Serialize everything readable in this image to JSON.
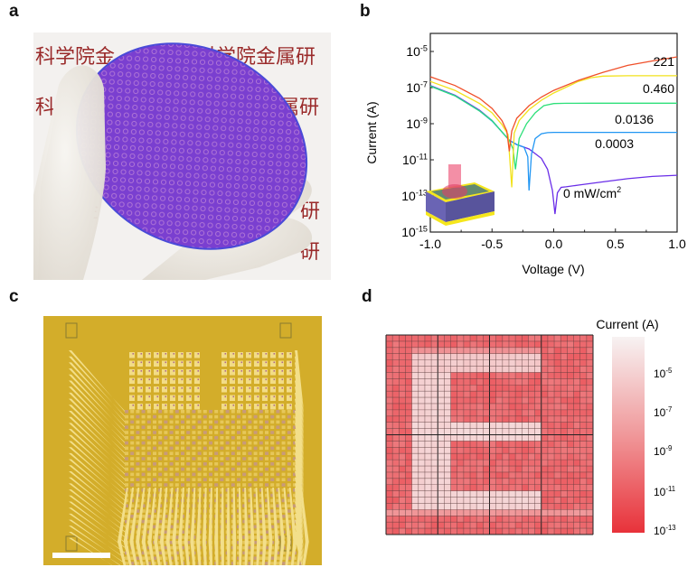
{
  "panels": {
    "a": {
      "label": "a",
      "description": "Photograph of a wafer held in a gloved hand"
    },
    "b": {
      "label": "b"
    },
    "c": {
      "label": "c",
      "description": "Optical micrograph of a sensor array chip with scale bar"
    },
    "d": {
      "label": "d"
    }
  },
  "colors": {
    "wafer": "#7a3fd0",
    "chip_gold": "#d3ad2a",
    "glove": "#ede9e2",
    "curve_221": "#f0502a",
    "curve_0460": "#f2e21c",
    "curve_00136": "#2ee07a",
    "curve_00003": "#2196f3",
    "curve_0": "#6a2ee8",
    "heat_low": "#e8323a",
    "heat_high": "#f7eeee"
  },
  "chart_data": [
    {
      "type": "line",
      "panel": "b",
      "title": "",
      "xlabel": "Voltage (V)",
      "ylabel": "Current (A)",
      "xlim": [
        -1.0,
        1.0
      ],
      "ylim": [
        1e-15,
        0.0001
      ],
      "yscale": "log",
      "xticks": [
        "-1.0",
        "-0.5",
        "0.0",
        "0.5",
        "1.0"
      ],
      "yticks": [
        {
          "base": "10",
          "exp": "-5"
        },
        {
          "base": "10",
          "exp": "-7"
        },
        {
          "base": "10",
          "exp": "-9"
        },
        {
          "base": "10",
          "exp": "-11"
        },
        {
          "base": "10",
          "exp": "-13"
        },
        {
          "base": "10",
          "exp": "-15"
        }
      ],
      "legend_title_unit": "mW/cm",
      "legend_unit_exp": "2",
      "series": [
        {
          "name": "221",
          "color_key": "curve_221",
          "zero_v": -0.36,
          "x": [
            -1.0,
            -0.8,
            -0.6,
            -0.5,
            -0.42,
            -0.38,
            -0.36,
            -0.34,
            -0.3,
            -0.2,
            -0.1,
            0.0,
            0.2,
            0.4,
            0.6,
            0.8,
            1.0
          ],
          "y": [
            4e-07,
            1.3e-07,
            2.5e-08,
            7e-09,
            1.5e-09,
            4e-10,
            3e-11,
            4e-10,
            2e-09,
            1e-08,
            3e-08,
            7e-08,
            2.5e-07,
            7e-07,
            1.7e-06,
            3e-06,
            5e-06
          ]
        },
        {
          "name": "0.460",
          "color_key": "curve_0460",
          "zero_v": -0.34,
          "x": [
            -1.0,
            -0.8,
            -0.6,
            -0.5,
            -0.42,
            -0.37,
            -0.34,
            -0.32,
            -0.28,
            -0.2,
            -0.1,
            0.0,
            0.2,
            0.3,
            0.4,
            0.6,
            1.0
          ],
          "y": [
            2.2e-07,
            7e-08,
            1.3e-08,
            4e-09,
            9e-10,
            2.5e-10,
            3e-13,
            3e-10,
            1.5e-09,
            6e-09,
            2e-08,
            5e-08,
            2.2e-07,
            3.5e-07,
            4.3e-07,
            4.5e-07,
            4.5e-07
          ]
        },
        {
          "name": "0.0136",
          "color_key": "curve_00136",
          "zero_v": -0.31,
          "x": [
            -1.0,
            -0.8,
            -0.6,
            -0.5,
            -0.42,
            -0.36,
            -0.33,
            -0.31,
            -0.28,
            -0.22,
            -0.15,
            -0.08,
            0.0,
            0.1,
            0.3,
            1.0
          ],
          "y": [
            1.2e-07,
            3.5e-08,
            5e-09,
            1.5e-09,
            3.5e-10,
            1.2e-10,
            4e-11,
            3e-12,
            1.5e-10,
            1e-09,
            4e-09,
            1e-08,
            1.3e-08,
            1.35e-08,
            1.36e-08,
            1.36e-08
          ]
        },
        {
          "name": "0.0003",
          "color_key": "curve_00003",
          "zero_v": -0.2,
          "x": [
            -1.0,
            -0.8,
            -0.6,
            -0.5,
            -0.42,
            -0.36,
            -0.3,
            -0.24,
            -0.21,
            -0.2,
            -0.18,
            -0.15,
            -0.1,
            -0.05,
            0.0,
            0.1,
            1.0
          ],
          "y": [
            1.2e-07,
            3.5e-08,
            5e-09,
            1.4e-09,
            3.5e-10,
            1.2e-10,
            7e-11,
            5e-11,
            1.5e-11,
            2e-13,
            2e-11,
            1.5e-10,
            2.8e-10,
            3.2e-10,
            3.3e-10,
            3.3e-10,
            3.3e-10
          ]
        },
        {
          "name": "0 mW/cm2",
          "color_key": "curve_0",
          "zero_v": 0.01,
          "x": [
            -1.0,
            -0.8,
            -0.6,
            -0.5,
            -0.42,
            -0.36,
            -0.3,
            -0.2,
            -0.1,
            -0.05,
            -0.01,
            0.01,
            0.03,
            0.06,
            0.1,
            0.2,
            0.4,
            0.6,
            0.8,
            1.0
          ],
          "y": [
            1.3e-07,
            3.8e-08,
            5.5e-09,
            1.5e-09,
            3.5e-10,
            1.2e-10,
            7e-11,
            4e-11,
            1.2e-11,
            3e-12,
            2e-13,
            1e-14,
            1.5e-13,
            3e-13,
            3.2e-13,
            4e-13,
            6e-13,
            9e-13,
            1.2e-12,
            1.4e-12
          ]
        }
      ],
      "labels": [
        {
          "text": "221",
          "series": "221"
        },
        {
          "text": "0.460",
          "series": "0.460"
        },
        {
          "text": "0.0136",
          "series": "0.0136"
        },
        {
          "text": "0.0003",
          "series": "0.0003"
        },
        {
          "text": "0 mW/cm",
          "sup": "2",
          "series": "0 mW/cm2"
        }
      ]
    },
    {
      "type": "heatmap",
      "panel": "d",
      "title": "",
      "colorbar_title": "Current (A)",
      "rows": 32,
      "cols": 32,
      "scale": "log",
      "vlim": [
        1e-13,
        0.0001
      ],
      "colorbar_ticks": [
        {
          "base": "10",
          "exp": "-5"
        },
        {
          "base": "10",
          "exp": "-7"
        },
        {
          "base": "10",
          "exp": "-9"
        },
        {
          "base": "10",
          "exp": "-11"
        },
        {
          "base": "10",
          "exp": "-13"
        }
      ],
      "pattern": "E",
      "pattern_regions": [
        {
          "part": "vertical-bar",
          "rows": [
            3,
            27
          ],
          "cols": [
            4,
            9
          ],
          "log_current": -5.6
        },
        {
          "part": "top-bar",
          "rows": [
            3,
            5
          ],
          "cols": [
            4,
            23
          ],
          "log_current": -6.0
        },
        {
          "part": "middle-bar",
          "rows": [
            14,
            16
          ],
          "cols": [
            4,
            23
          ],
          "log_current": -5.4
        },
        {
          "part": "bottom-bar",
          "rows": [
            25,
            27
          ],
          "cols": [
            4,
            23
          ],
          "log_current": -5.5
        },
        {
          "part": "partial-row",
          "rows": [
            28,
            28
          ],
          "cols": [
            0,
            31
          ],
          "log_current": -8.5
        }
      ],
      "background_log_current": -10.5
    }
  ]
}
